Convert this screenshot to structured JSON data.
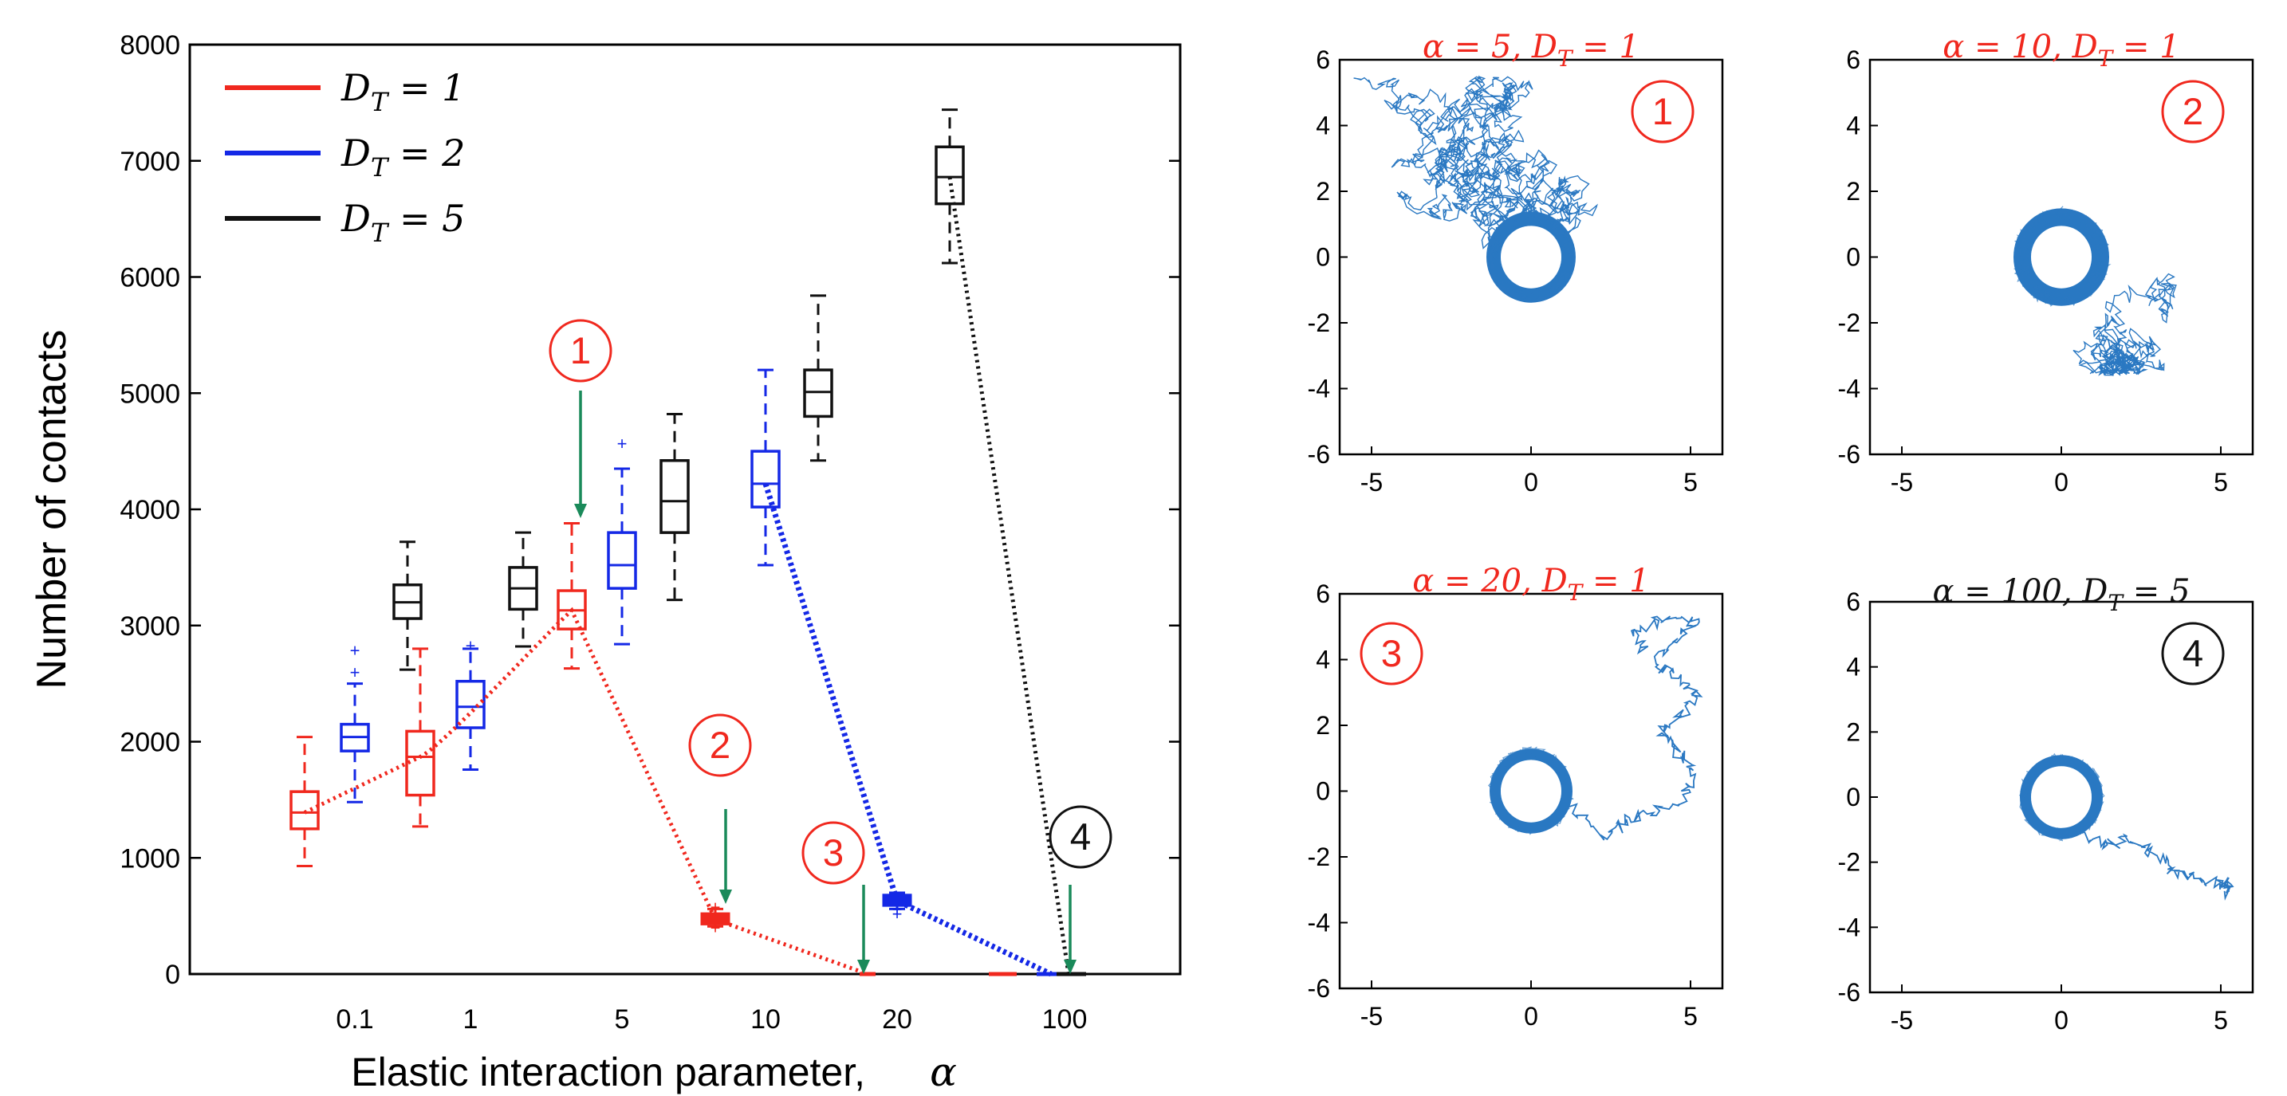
{
  "colors": {
    "red": "#f0281e",
    "blue": "#1428e6",
    "black": "#111111",
    "green": "#1a8a5a",
    "trajectory": "#2a78c2"
  },
  "chart_data": [
    {
      "type": "box",
      "title": "",
      "xlabel": "Elastic interaction parameter,",
      "xlabel_symbol": "α",
      "ylabel": "Number of contacts",
      "ylim": [
        0,
        8000
      ],
      "yticks": [
        0,
        1000,
        2000,
        3000,
        4000,
        5000,
        6000,
        7000,
        8000
      ],
      "categories": [
        "0.1",
        "1",
        "5",
        "10",
        "20",
        "100"
      ],
      "legend": {
        "position": "top-left",
        "entries": [
          {
            "key": "DT1",
            "label": "D_T = 1",
            "color": "#f0281e"
          },
          {
            "key": "DT2",
            "label": "D_T = 2",
            "color": "#1428e6"
          },
          {
            "key": "DT5",
            "label": "D_T = 5",
            "color": "#111111"
          }
        ]
      },
      "series": [
        {
          "name": "D_T = 1",
          "color": "#f0281e",
          "boxes": [
            {
              "category": "0.1",
              "min": 930,
              "q1": 1250,
              "median": 1390,
              "q3": 1570,
              "max": 2040,
              "outliers": []
            },
            {
              "category": "1",
              "min": 1270,
              "q1": 1540,
              "median": 1870,
              "q3": 2090,
              "max": 2800,
              "outliers": []
            },
            {
              "category": "5",
              "min": 2630,
              "q1": 2970,
              "median": 3130,
              "q3": 3300,
              "max": 3880,
              "outliers": []
            },
            {
              "category": "10",
              "min": 410,
              "q1": 450,
              "median": 470,
              "q3": 500,
              "max": 560,
              "outliers": [
                400,
                580
              ]
            },
            {
              "category": "20",
              "min": 0,
              "q1": 0,
              "median": 0,
              "q3": 0,
              "max": 0,
              "outliers": []
            },
            {
              "category": "100",
              "min": 0,
              "q1": 0,
              "median": 0,
              "q3": 0,
              "max": 0,
              "outliers": []
            }
          ],
          "trend": [
            1390,
            1870,
            3130,
            470,
            0
          ]
        },
        {
          "name": "D_T = 2",
          "color": "#1428e6",
          "boxes": [
            {
              "category": "0.1",
              "min": 1480,
              "q1": 1920,
              "median": 2040,
              "q3": 2150,
              "max": 2500,
              "outliers": [
                2600,
                2790
              ]
            },
            {
              "category": "1",
              "min": 1760,
              "q1": 2120,
              "median": 2300,
              "q3": 2520,
              "max": 2800,
              "outliers": [
                2830
              ]
            },
            {
              "category": "5",
              "min": 2840,
              "q1": 3320,
              "median": 3520,
              "q3": 3800,
              "max": 4350,
              "outliers": [
                4570
              ]
            },
            {
              "category": "10",
              "min": 3520,
              "q1": 4020,
              "median": 4220,
              "q3": 4500,
              "max": 5200,
              "outliers": []
            },
            {
              "category": "20",
              "min": 560,
              "q1": 610,
              "median": 630,
              "q3": 660,
              "max": 700,
              "outliers": [
                520,
                560
              ]
            },
            {
              "category": "100",
              "min": 0,
              "q1": 0,
              "median": 0,
              "q3": 0,
              "max": 0,
              "outliers": []
            }
          ],
          "trend": [
            4220,
            630,
            0
          ]
        },
        {
          "name": "D_T = 5",
          "color": "#111111",
          "boxes": [
            {
              "category": "0.1",
              "min": 2620,
              "q1": 3060,
              "median": 3200,
              "q3": 3350,
              "max": 3720,
              "outliers": []
            },
            {
              "category": "1",
              "min": 2820,
              "q1": 3140,
              "median": 3320,
              "q3": 3500,
              "max": 3800,
              "outliers": []
            },
            {
              "category": "5",
              "min": 3220,
              "q1": 3800,
              "median": 4070,
              "q3": 4420,
              "max": 4820,
              "outliers": []
            },
            {
              "category": "10",
              "min": 4420,
              "q1": 4800,
              "median": 5010,
              "q3": 5200,
              "max": 5840,
              "outliers": []
            },
            {
              "category": "20",
              "min": 6120,
              "q1": 6630,
              "median": 6860,
              "q3": 7120,
              "max": 7440,
              "outliers": []
            },
            {
              "category": "100",
              "min": 0,
              "q1": 0,
              "median": 0,
              "q3": 0,
              "max": 0,
              "outliers": []
            }
          ],
          "trend": [
            6860,
            0
          ]
        }
      ],
      "annotations": [
        {
          "label": "1",
          "color": "#f0281e",
          "arrow_to": 4000
        },
        {
          "label": "2",
          "color": "#f0281e",
          "arrow_to": 600
        },
        {
          "label": "3",
          "color": "#f0281e",
          "arrow_to": 0
        },
        {
          "label": "4",
          "color": "#111111",
          "arrow_to": 0
        }
      ]
    },
    {
      "type": "line",
      "panel": "1",
      "title_alpha": "α = 5,",
      "title_dt": "D_T = 1",
      "title_color": "#f0281e",
      "badge": "1",
      "badge_color": "#f0281e",
      "xlim": [
        -6,
        6
      ],
      "ylim": [
        -6,
        6
      ],
      "xticks": [
        -5,
        0,
        5
      ],
      "yticks": [
        -6,
        -4,
        -2,
        0,
        2,
        4,
        6
      ],
      "series": [
        {
          "name": "trajectory",
          "walk": {
            "start": [
              -5.3,
              5.4
            ],
            "mean": [
              -1.8,
              1.6
            ],
            "spread": 2.4,
            "steps": 1400,
            "bounds": [
              -5.6,
              3.2,
              -5.5,
              5.5
            ]
          }
        }
      ]
    },
    {
      "type": "line",
      "panel": "2",
      "title_alpha": "α = 10,",
      "title_dt": "D_T = 1",
      "title_color": "#f0281e",
      "badge": "2",
      "badge_color": "#f0281e",
      "xlim": [
        -6,
        6
      ],
      "ylim": [
        -6,
        6
      ],
      "xticks": [
        -5,
        0,
        5
      ],
      "yticks": [
        -6,
        -4,
        -2,
        0,
        2,
        4,
        6
      ],
      "series": [
        {
          "name": "trajectory",
          "walk": {
            "start": [
              2.2,
              -3.4
            ],
            "mean": [
              0.6,
              -0.6
            ],
            "spread": 1.3,
            "steps": 500,
            "bounds": [
              -2.6,
              3.6,
              -3.6,
              2.2
            ]
          }
        }
      ]
    },
    {
      "type": "line",
      "panel": "3",
      "title_alpha": "α = 20,",
      "title_dt": "D_T = 1",
      "title_color": "#f0281e",
      "badge": "3",
      "badge_color": "#f0281e",
      "xlim": [
        -6,
        6
      ],
      "ylim": [
        -6,
        6
      ],
      "xticks": [
        -5,
        0,
        5
      ],
      "yticks": [
        -6,
        -4,
        -2,
        0,
        2,
        4,
        6
      ],
      "series": [
        {
          "name": "trajectory",
          "path": [
            [
              1.2,
              -0.4
            ],
            [
              2.3,
              -1.4
            ],
            [
              3.0,
              -0.9
            ],
            [
              3.8,
              -0.6
            ],
            [
              4.8,
              -0.2
            ],
            [
              5.1,
              0.6
            ],
            [
              4.6,
              1.2
            ],
            [
              4.1,
              1.8
            ],
            [
              4.8,
              2.4
            ],
            [
              5.2,
              3.0
            ],
            [
              4.4,
              3.6
            ],
            [
              3.8,
              3.9
            ],
            [
              4.6,
              4.6
            ],
            [
              5.2,
              5.1
            ],
            [
              4.2,
              5.3
            ],
            [
              3.2,
              4.8
            ],
            [
              3.6,
              4.3
            ]
          ]
        }
      ]
    },
    {
      "type": "line",
      "panel": "4",
      "title_alpha": "α = 100,",
      "title_dt": "D_T = 5",
      "title_color": "#111111",
      "badge": "4",
      "badge_color": "#111111",
      "xlim": [
        -6,
        6
      ],
      "ylim": [
        -6,
        6
      ],
      "xticks": [
        -5,
        0,
        5
      ],
      "yticks": [
        -6,
        -4,
        -2,
        0,
        2,
        4,
        6
      ],
      "series": [
        {
          "name": "trajectory",
          "path": [
            [
              0.4,
              -1.1
            ],
            [
              1.4,
              -1.5
            ],
            [
              2.2,
              -1.3
            ],
            [
              2.9,
              -1.8
            ],
            [
              3.5,
              -2.3
            ],
            [
              4.3,
              -2.5
            ],
            [
              4.9,
              -2.7
            ],
            [
              5.3,
              -2.6
            ],
            [
              5.1,
              -3.0
            ]
          ]
        }
      ]
    }
  ]
}
